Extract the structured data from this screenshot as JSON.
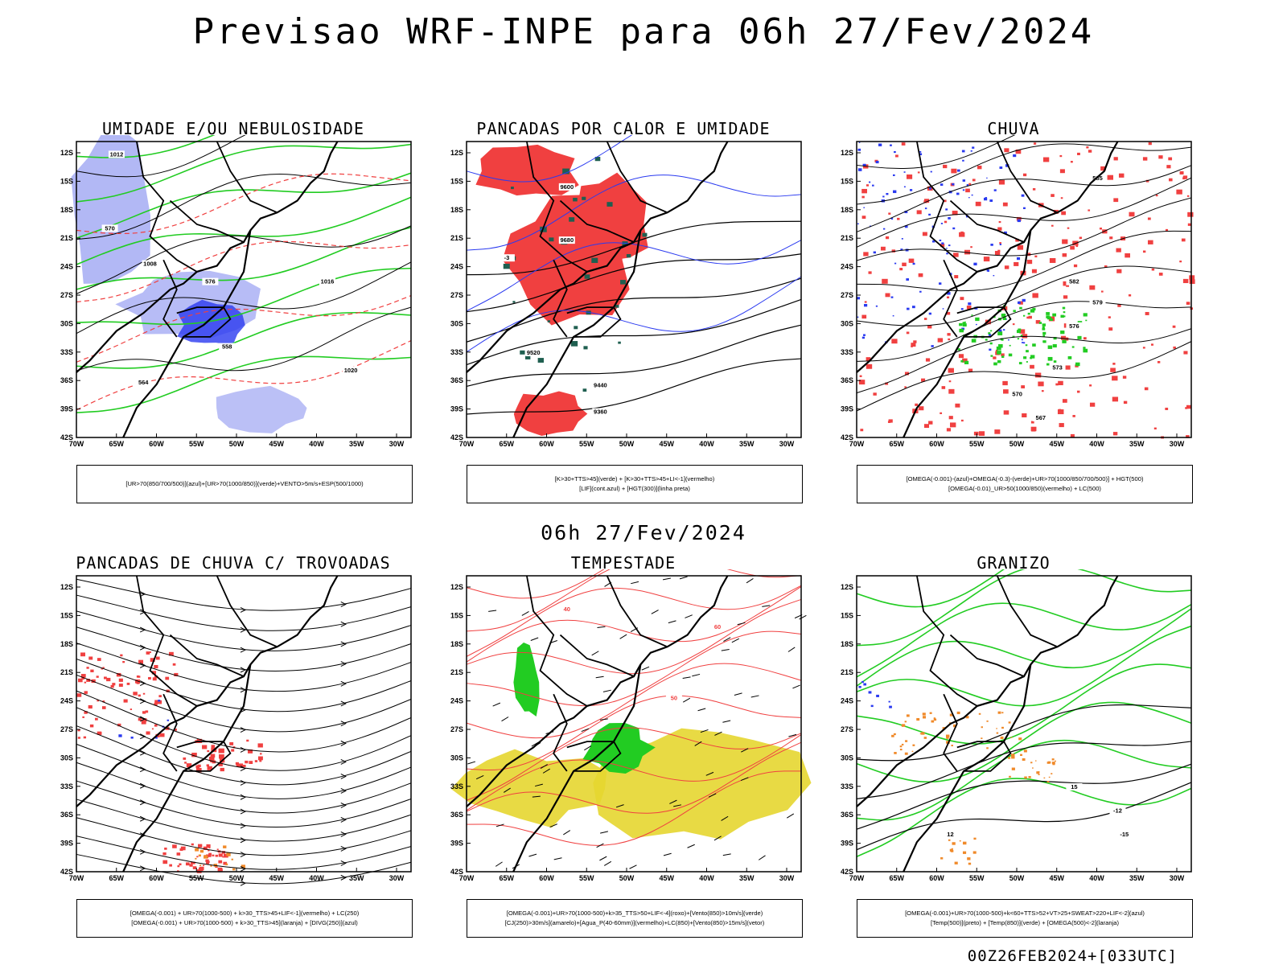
{
  "title": "Previsao WRF-INPE  para 06h 27/Fev/2024",
  "subtitle": "06h 27/Fev/2024",
  "footer": "00Z26FEB2024+[033UTC]",
  "colors": {
    "red": "#f04040",
    "green": "#22cc22",
    "blue": "#2a3af0",
    "lavender": "#aab0f4",
    "yellow": "#e6d630",
    "orange": "#f08a2a",
    "darkgreen": "#1f5f50"
  },
  "axes": {
    "lat_labels": [
      "12S",
      "15S",
      "18S",
      "21S",
      "24S",
      "27S",
      "30S",
      "33S",
      "36S",
      "39S",
      "42S"
    ],
    "lon_labels": [
      "70W",
      "65W",
      "60W",
      "55W",
      "50W",
      "45W",
      "40W",
      "35W",
      "30W"
    ]
  },
  "panels": [
    {
      "title": "UMIDADE E/OU NEBULOSIDADE",
      "legend": [
        "[UR>70(850/700/500)](azul)+[UR>70(1000/850)](verde)+VENTO>5m/s+ESP(500/1000)"
      ],
      "contour_labels": [
        "1012",
        "1008",
        "1016",
        "1020",
        "570",
        "576",
        "564",
        "558"
      ]
    },
    {
      "title": "PANCADAS POR CALOR E UMIDADE",
      "legend": [
        "[K>30+TTS>45](verde)  +  [K>30+TTS>45+LI<-1](vermelho)",
        "[LIF](cont.azul)  +  [HGT(300)](linha preta)"
      ],
      "contour_labels": [
        "9600",
        "9680",
        "9520",
        "9440",
        "9360",
        "-3"
      ]
    },
    {
      "title": "CHUVA",
      "legend": [
        "[OMEGA(-0.001)-(azul)+OMEGA(-0.3)-(verde)+UR>70(1000/850/700/500)]  +  HGT(500)",
        "[OMEGA(-0.01)_UR>50(1000/850)(vermelho)  +  LC(500)"
      ],
      "contour_labels": [
        "585",
        "582",
        "579",
        "576",
        "573",
        "570",
        "567"
      ]
    },
    {
      "title": "PANCADAS DE CHUVA C/ TROVOADAS",
      "legend": [
        "[OMEGA(-0.001)  +  UR>70(1000-500)  +  k>30_TTS>45+LIF<-1](vermelho)  +  LC(250)",
        "[OMEGA(-0.001)  +  UR>70(1000-500)  +  k>30_TTS>45](laranja)  +  [DIVG(250)](azul)"
      ],
      "contour_labels": []
    },
    {
      "title": "TEMPESTADE",
      "legend": [
        "[OMEGA(-0.001)+UR>70(1000-500)+k>35_TTS>50+LIF<-4](roxo)+[Vento(850)>10m/s](verde)",
        "[CJ(250)>30m/s](amarelo)+[Agua_P(40-60mm)](vermelho)+LC(850)+[Vento(850)>15m/s](vetor)"
      ],
      "contour_labels": [
        "40",
        "50",
        "60"
      ]
    },
    {
      "title": "GRANIZO",
      "legend": [
        "[OMEGA(-0.001)+UR>70(1000-500)+k<60+TTS>52+VT>25+SWEAT>220+LIF<-2](azul)",
        "[Temp(500)](preto)  +  [Temp(850)](verde)  +  [OMEGA(500)<-2](laranja)"
      ],
      "contour_labels": [
        "12",
        "15",
        "-12",
        "-15"
      ]
    }
  ]
}
